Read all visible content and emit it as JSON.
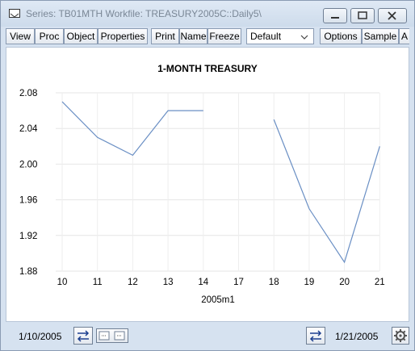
{
  "window": {
    "title": "Series: TB01MTH   Workfile: TREASURY2005C::Daily5\\"
  },
  "toolbar": {
    "buttons": [
      "View",
      "Proc",
      "Object",
      "Properties",
      "Print",
      "Name",
      "Freeze"
    ],
    "select_value": "Default",
    "buttons_right": [
      "Options",
      "Sample",
      "A"
    ]
  },
  "status": {
    "left_date": "1/10/2005",
    "right_date": "1/21/2005"
  },
  "icons": {
    "window_icon": "window-icon",
    "minimize": "minimize-icon",
    "maximize": "maximize-icon",
    "close": "close-icon",
    "dropdown": "chevron-down-icon",
    "scroll_arrows": "swap-arrows-icon",
    "slider": "slider-icon",
    "gear": "gear-icon"
  },
  "chart_data": {
    "type": "line",
    "title": "1-MONTH TREASURY",
    "xlabel": "2005m1",
    "ylabel": "",
    "categories": [
      "10",
      "11",
      "12",
      "13",
      "14",
      "17",
      "18",
      "19",
      "20",
      "21"
    ],
    "values": [
      2.07,
      2.03,
      2.01,
      2.06,
      2.06,
      null,
      2.05,
      1.95,
      1.89,
      2.02
    ],
    "ylim": [
      1.88,
      2.08
    ],
    "yticks": [
      1.88,
      1.92,
      1.96,
      2.0,
      2.04,
      2.08
    ],
    "ytick_labels": [
      "1.88",
      "1.92",
      "1.96",
      "2.00",
      "2.04",
      "2.08"
    ],
    "grid": true,
    "line_color": "#6a8fc4"
  }
}
